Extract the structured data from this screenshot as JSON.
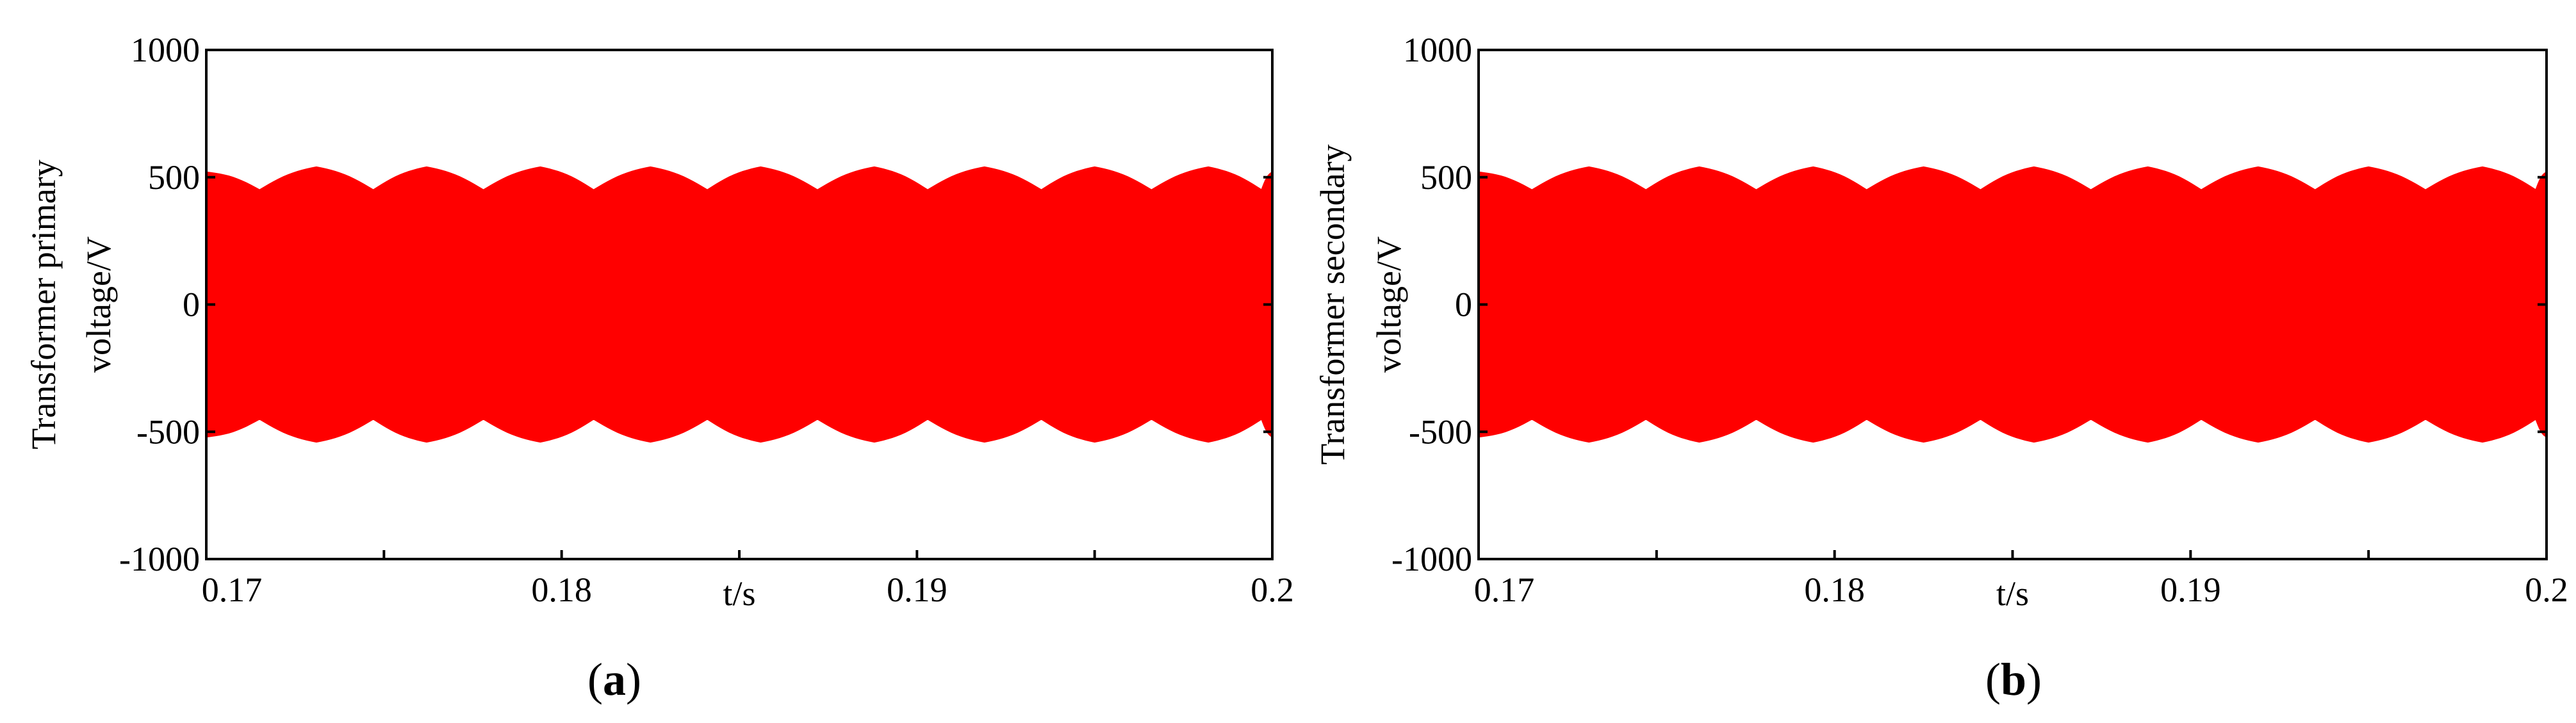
{
  "figure": {
    "panels": [
      {
        "label_open": "(",
        "label_letter": "a",
        "label_close": ")"
      },
      {
        "label_open": "(",
        "label_letter": "b",
        "label_close": ")"
      }
    ]
  },
  "chart_data": [
    {
      "type": "area",
      "title": "",
      "xlabel": "t/s",
      "ylabel_lines": [
        "Transformer primary",
        "voltage/V"
      ],
      "xlim": [
        0.17,
        0.2
      ],
      "ylim": [
        -1000,
        1000
      ],
      "xticks": [
        0.17,
        0.18,
        0.19,
        0.2
      ],
      "xtick_labels": [
        "0.17",
        "0.18",
        "0.19",
        "0.2"
      ],
      "yticks": [
        1000,
        500,
        0,
        -500,
        -1000
      ],
      "ytick_labels": [
        "1000",
        "500",
        "0",
        "-500",
        "-1000"
      ],
      "grid": false,
      "series": [
        {
          "color": "#ff0000",
          "envelope": {
            "x": [
              0.17,
              0.1715,
              0.1731,
              0.1747,
              0.1762,
              0.1778,
              0.1794,
              0.1809,
              0.1825,
              0.1841,
              0.1856,
              0.1872,
              0.1888,
              0.1903,
              0.1919,
              0.1935,
              0.195,
              0.1966,
              0.1982,
              0.1997,
              0.2
            ],
            "upper": [
              520,
              450,
              540,
              450,
              540,
              450,
              540,
              450,
              540,
              450,
              540,
              450,
              540,
              450,
              540,
              450,
              540,
              450,
              540,
              450,
              520
            ],
            "lower": [
              -520,
              -450,
              -540,
              -450,
              -540,
              -450,
              -540,
              -450,
              -540,
              -450,
              -540,
              -450,
              -540,
              -450,
              -540,
              -450,
              -540,
              -450,
              -540,
              -450,
              -520
            ]
          }
        }
      ]
    },
    {
      "type": "area",
      "title": "",
      "xlabel": "t/s",
      "ylabel_lines": [
        "Transformer secondary",
        "voltage/V"
      ],
      "xlim": [
        0.17,
        0.2
      ],
      "ylim": [
        -1000,
        1000
      ],
      "xticks": [
        0.17,
        0.18,
        0.19,
        0.2
      ],
      "xtick_labels": [
        "0.17",
        "0.18",
        "0.19",
        "0.2"
      ],
      "yticks": [
        1000,
        500,
        0,
        -500,
        -1000
      ],
      "ytick_labels": [
        "1000",
        "500",
        "0",
        "-500",
        "-1000"
      ],
      "grid": false,
      "series": [
        {
          "color": "#ff0000",
          "envelope": {
            "x": [
              0.17,
              0.1715,
              0.1731,
              0.1747,
              0.1762,
              0.1778,
              0.1794,
              0.1809,
              0.1825,
              0.1841,
              0.1856,
              0.1872,
              0.1888,
              0.1903,
              0.1919,
              0.1935,
              0.195,
              0.1966,
              0.1982,
              0.1997,
              0.2
            ],
            "upper": [
              520,
              450,
              540,
              450,
              540,
              450,
              540,
              450,
              540,
              450,
              540,
              450,
              540,
              450,
              540,
              450,
              540,
              450,
              540,
              450,
              520
            ],
            "lower": [
              -520,
              -450,
              -540,
              -450,
              -540,
              -450,
              -540,
              -450,
              -540,
              -450,
              -540,
              -450,
              -540,
              -450,
              -540,
              -450,
              -540,
              -450,
              -540,
              -450,
              -520
            ]
          }
        }
      ]
    }
  ]
}
